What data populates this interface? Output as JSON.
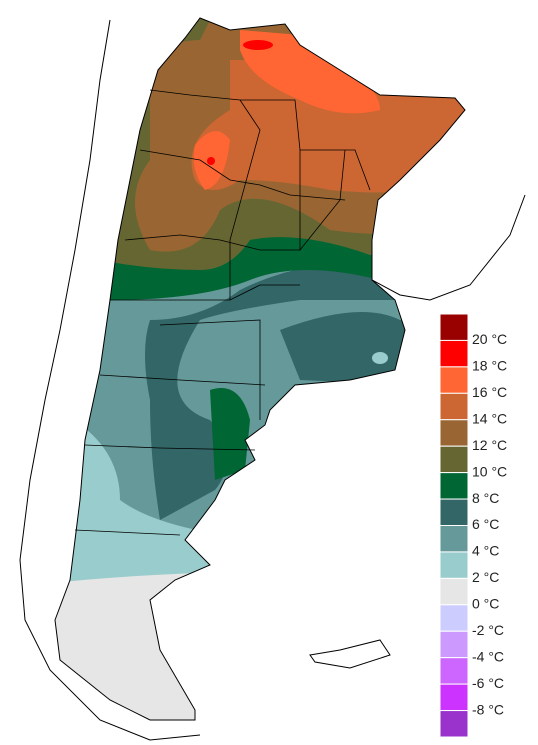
{
  "legend": {
    "labels": [
      "20 °C",
      "18 °C",
      "16 °C",
      "14 °C",
      "12 °C",
      "10 °C",
      "8 °C",
      "6 °C",
      "4 °C",
      "2 °C",
      "0 °C",
      "-2 °C",
      "-4 °C",
      "-6 °C",
      "-8 °C"
    ],
    "colors": [
      "#990000",
      "#ff0000",
      "#ff6633",
      "#cc6633",
      "#996633",
      "#666633",
      "#006633",
      "#336666",
      "#669999",
      "#99cccc",
      "#e6e6e6",
      "#ccccff",
      "#cc99ff",
      "#cc66ff",
      "#cc33ff",
      "#9933cc"
    ]
  }
}
